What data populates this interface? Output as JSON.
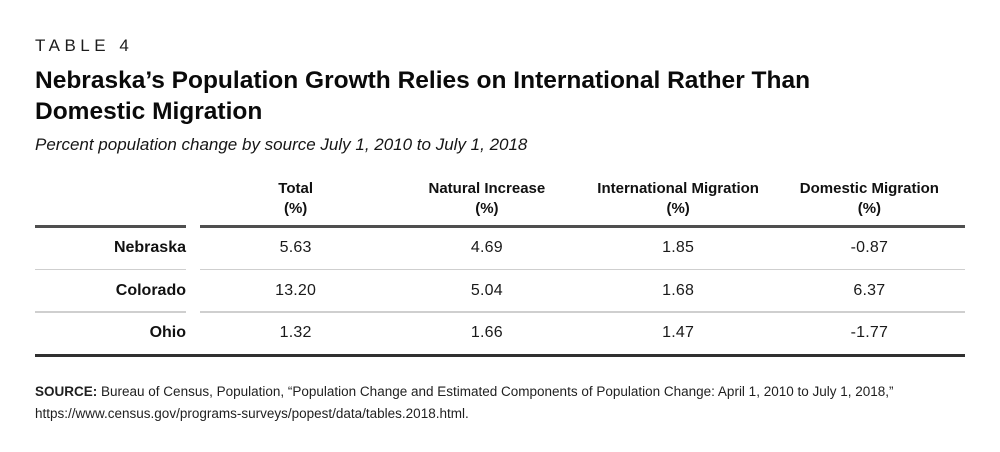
{
  "kicker": "TABLE 4",
  "title": "Nebraska’s Population Growth Relies on International Rather Than Domestic Migration",
  "subtitle": "Percent population change by source July 1, 2010 to July 1, 2018",
  "table": {
    "columns": [
      {
        "label": "Total",
        "unit": "(%)"
      },
      {
        "label": "Natural Increase",
        "unit": "(%)"
      },
      {
        "label": "International Migration",
        "unit": "(%)"
      },
      {
        "label": "Domestic Migration",
        "unit": "(%)"
      }
    ],
    "rows": [
      {
        "label": "Nebraska",
        "values": [
          "5.63",
          "4.69",
          "1.85",
          "-0.87"
        ]
      },
      {
        "label": "Colorado",
        "values": [
          "13.20",
          "5.04",
          "1.68",
          "6.37"
        ]
      },
      {
        "label": "Ohio",
        "values": [
          "1.32",
          "1.66",
          "1.47",
          "-1.77"
        ]
      }
    ]
  },
  "source": {
    "label": "SOURCE:",
    "text": " Bureau of Census, Population, “Population Change and Estimated Components of Population Change: April 1, 2010 to July 1, 2018,” https://www.census.gov/programs-surveys/popest/data/tables.2018.html."
  },
  "colors": {
    "text": "#141414",
    "rule_header": "#4f4f4f",
    "rule_row": "#cfcfcf",
    "rule_bottom": "#303030",
    "background": "#ffffff"
  },
  "chart_data": {
    "type": "table",
    "title": "Nebraska’s Population Growth Relies on International Rather Than Domestic Migration",
    "subtitle": "Percent population change by source July 1, 2010 to July 1, 2018",
    "columns": [
      "",
      "Total (%)",
      "Natural Increase (%)",
      "International Migration (%)",
      "Domestic Migration (%)"
    ],
    "rows": [
      [
        "Nebraska",
        5.63,
        4.69,
        1.85,
        -0.87
      ],
      [
        "Colorado",
        13.2,
        5.04,
        1.68,
        6.37
      ],
      [
        "Ohio",
        1.32,
        1.66,
        1.47,
        -1.77
      ]
    ]
  }
}
